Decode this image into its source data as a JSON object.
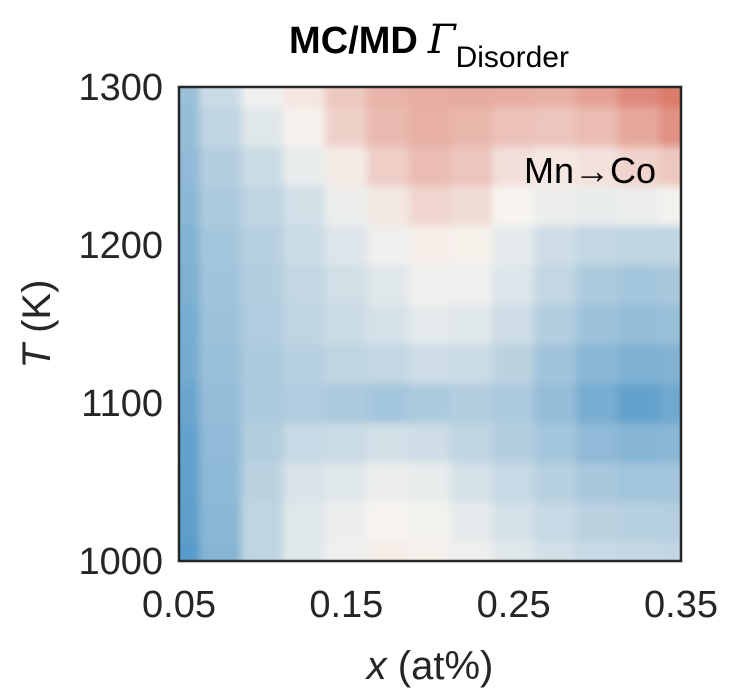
{
  "chart_data": {
    "type": "heatmap",
    "title_main": "MC/MD",
    "title_symbol": "Γ",
    "title_subscript": "Disorder",
    "xlabel_var": "x",
    "xlabel_unit": " (at%)",
    "ylabel_var": "T",
    "ylabel_unit": " (K)",
    "annotation": "Mn→Co",
    "xlim": [
      0.05,
      0.35
    ],
    "ylim": [
      1000,
      1300
    ],
    "x_ticks": [
      0.05,
      0.15,
      0.25,
      0.35
    ],
    "x_tick_labels": [
      "0.05",
      "0.15",
      "0.25",
      "0.35"
    ],
    "y_ticks": [
      1000,
      1100,
      1200,
      1300
    ],
    "y_tick_labels": [
      "1000",
      "1100",
      "1200",
      "1300"
    ],
    "colormap": "blue-white-red (diverging)",
    "colors": {
      "low": "#3b8bc2",
      "mid": "#f7f4f0",
      "high": "#d6604d"
    },
    "x": [
      0.05,
      0.075,
      0.1,
      0.125,
      0.15,
      0.175,
      0.2,
      0.225,
      0.25,
      0.275,
      0.3,
      0.325,
      0.35
    ],
    "y": [
      1000,
      1025,
      1050,
      1075,
      1100,
      1125,
      1150,
      1175,
      1200,
      1225,
      1250,
      1275,
      1300
    ],
    "z": [
      [
        -0.85,
        -0.6,
        -0.3,
        -0.12,
        -0.04,
        0.05,
        0.03,
        -0.05,
        -0.12,
        -0.2,
        -0.25,
        -0.27,
        -0.28
      ],
      [
        -0.82,
        -0.58,
        -0.3,
        -0.12,
        -0.06,
        0.0,
        -0.02,
        -0.1,
        -0.18,
        -0.26,
        -0.32,
        -0.34,
        -0.35
      ],
      [
        -0.8,
        -0.56,
        -0.32,
        -0.16,
        -0.12,
        -0.06,
        -0.08,
        -0.18,
        -0.26,
        -0.34,
        -0.42,
        -0.45,
        -0.45
      ],
      [
        -0.78,
        -0.55,
        -0.36,
        -0.26,
        -0.24,
        -0.2,
        -0.22,
        -0.3,
        -0.36,
        -0.44,
        -0.55,
        -0.6,
        -0.58
      ],
      [
        -0.75,
        -0.52,
        -0.4,
        -0.38,
        -0.4,
        -0.44,
        -0.4,
        -0.36,
        -0.4,
        -0.52,
        -0.68,
        -0.78,
        -0.72
      ],
      [
        -0.7,
        -0.5,
        -0.4,
        -0.34,
        -0.3,
        -0.28,
        -0.22,
        -0.24,
        -0.32,
        -0.46,
        -0.58,
        -0.64,
        -0.62
      ],
      [
        -0.68,
        -0.48,
        -0.38,
        -0.3,
        -0.24,
        -0.18,
        -0.1,
        -0.12,
        -0.22,
        -0.36,
        -0.48,
        -0.52,
        -0.5
      ],
      [
        -0.65,
        -0.46,
        -0.36,
        -0.28,
        -0.2,
        -0.12,
        -0.04,
        -0.05,
        -0.14,
        -0.28,
        -0.4,
        -0.44,
        -0.42
      ],
      [
        -0.62,
        -0.44,
        -0.34,
        -0.24,
        -0.14,
        -0.04,
        0.04,
        0.03,
        -0.1,
        -0.22,
        -0.28,
        -0.3,
        -0.3
      ],
      [
        -0.58,
        -0.4,
        -0.3,
        -0.2,
        -0.06,
        0.08,
        0.2,
        0.16,
        0.0,
        -0.06,
        -0.08,
        -0.06,
        -0.02
      ],
      [
        -0.55,
        -0.36,
        -0.24,
        -0.08,
        0.06,
        0.26,
        0.38,
        0.32,
        0.14,
        0.08,
        0.12,
        0.22,
        0.3
      ],
      [
        -0.52,
        -0.3,
        -0.12,
        0.02,
        0.24,
        0.4,
        0.46,
        0.42,
        0.34,
        0.32,
        0.38,
        0.52,
        0.66
      ],
      [
        -0.5,
        -0.24,
        -0.04,
        0.1,
        0.3,
        0.44,
        0.48,
        0.5,
        0.48,
        0.46,
        0.56,
        0.72,
        0.82
      ]
    ]
  }
}
